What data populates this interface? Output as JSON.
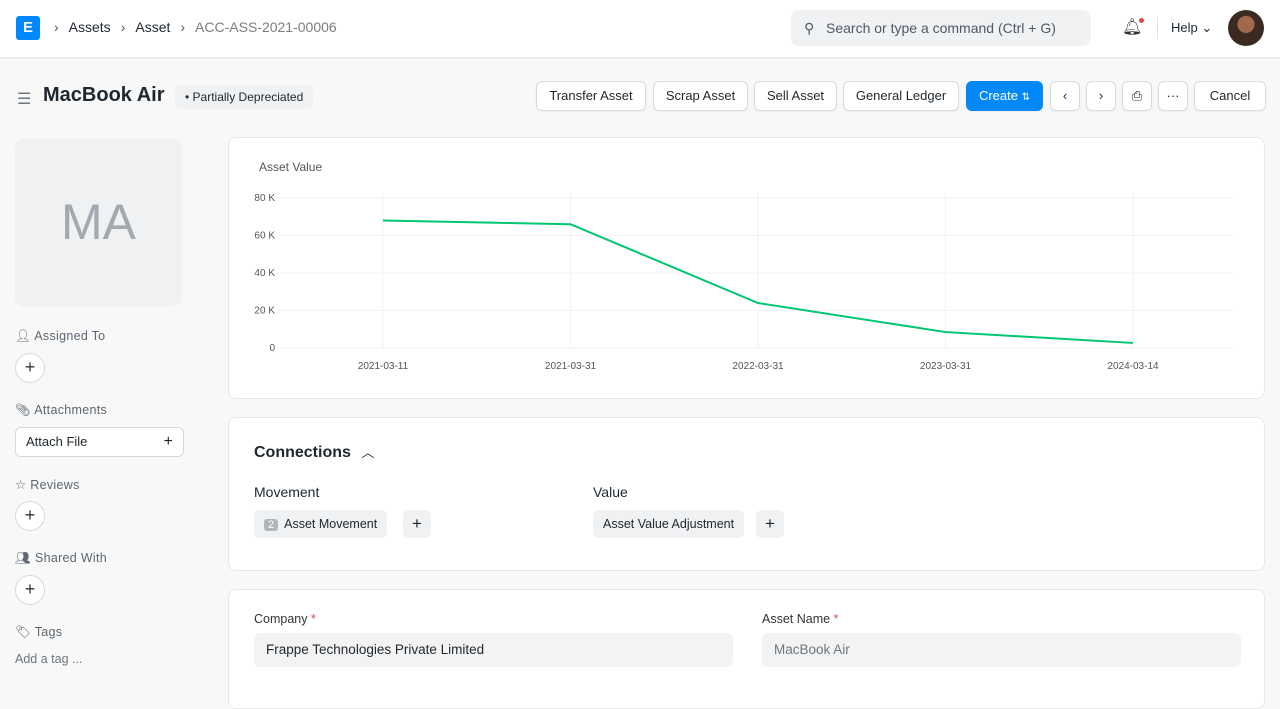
{
  "nav": {
    "logo": "E",
    "breadcrumbs": [
      "Assets",
      "Asset",
      "ACC-ASS-2021-00006"
    ],
    "search_placeholder": "Search or type a command (Ctrl + G)",
    "help": "Help"
  },
  "header": {
    "title": "MacBook Air",
    "status": "Partially Depreciated",
    "buttons": {
      "transfer": "Transfer Asset",
      "scrap": "Scrap Asset",
      "sell": "Sell Asset",
      "ledger": "General Ledger",
      "create": "Create",
      "cancel": "Cancel"
    }
  },
  "sidebar": {
    "initials": "MA",
    "assigned_to": "Assigned To",
    "attachments": "Attachments",
    "attach_file": "Attach File",
    "reviews": "Reviews",
    "shared_with": "Shared With",
    "tags": "Tags",
    "add_tag": "Add a tag ..."
  },
  "chart_data": {
    "type": "line",
    "title": "Asset Value",
    "categories": [
      "2021-03-11",
      "2021-03-31",
      "2022-03-31",
      "2023-03-31",
      "2024-03-14"
    ],
    "values": [
      68000,
      66000,
      24000,
      8500,
      2700
    ],
    "yticks": [
      "0",
      "20 K",
      "40 K",
      "60 K",
      "80 K"
    ],
    "ylim": [
      0,
      80000
    ],
    "grid": true,
    "color": "#00c66f"
  },
  "connections": {
    "title": "Connections",
    "groups": [
      {
        "label": "Movement",
        "items": [
          {
            "label": "Asset Movement",
            "count": "2"
          }
        ]
      },
      {
        "label": "Value",
        "items": [
          {
            "label": "Asset Value Adjustment"
          }
        ]
      }
    ]
  },
  "form": {
    "company_label": "Company",
    "company": "Frappe Technologies Private Limited",
    "asset_name_label": "Asset Name",
    "asset_name": "MacBook Air",
    "required": "*"
  }
}
